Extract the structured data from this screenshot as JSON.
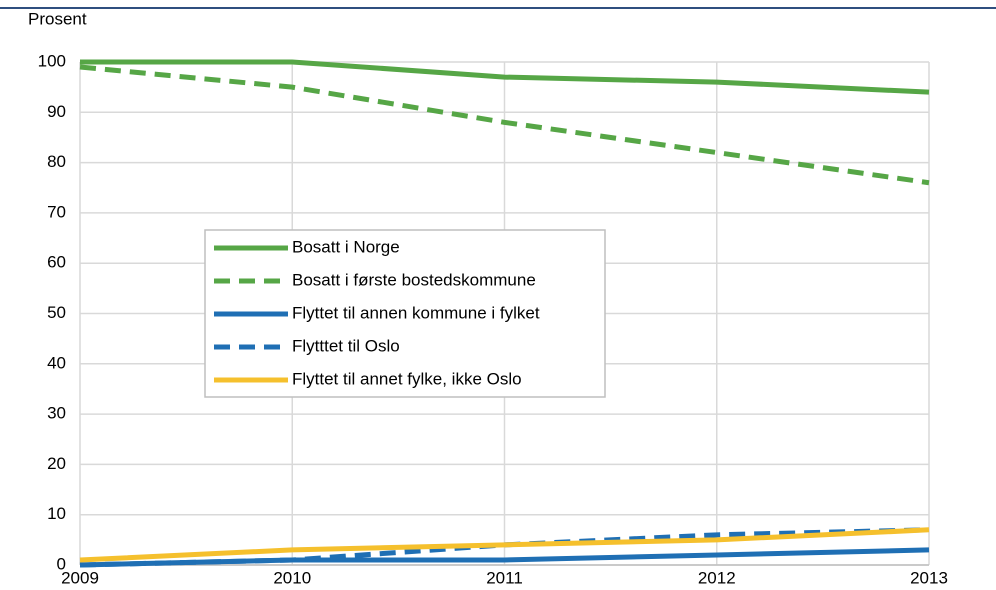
{
  "chart_data": {
    "type": "line",
    "y_label": "Prosent",
    "x": [
      2009,
      2010,
      2011,
      2012,
      2013
    ],
    "xlim": [
      2009,
      2013
    ],
    "xticks": [
      2009,
      2010,
      2011,
      2012,
      2013
    ],
    "ylim": [
      0,
      100
    ],
    "yticks": [
      0,
      10,
      20,
      30,
      40,
      50,
      60,
      70,
      80,
      90,
      100
    ],
    "grid": true,
    "series": [
      {
        "name": "Bosatt i Norge",
        "color": "#56a646",
        "dash": false,
        "values": [
          100,
          100,
          97,
          96,
          94
        ]
      },
      {
        "name": "Bosatt i første bostedskommune",
        "color": "#56a646",
        "dash": true,
        "values": [
          99,
          95,
          88,
          82,
          76
        ]
      },
      {
        "name": "Flyttet til annen kommune i fylket",
        "color": "#1f6fb4",
        "dash": false,
        "values": [
          0,
          1,
          1,
          2,
          3
        ]
      },
      {
        "name": "Flytttet til Oslo",
        "color": "#1f6fb4",
        "dash": true,
        "values": [
          0,
          1,
          4,
          6,
          7
        ]
      },
      {
        "name": "Flyttet til annet fylke, ikke Oslo",
        "color": "#f5c02d",
        "dash": false,
        "values": [
          1,
          3,
          4,
          5,
          7
        ]
      }
    ]
  }
}
